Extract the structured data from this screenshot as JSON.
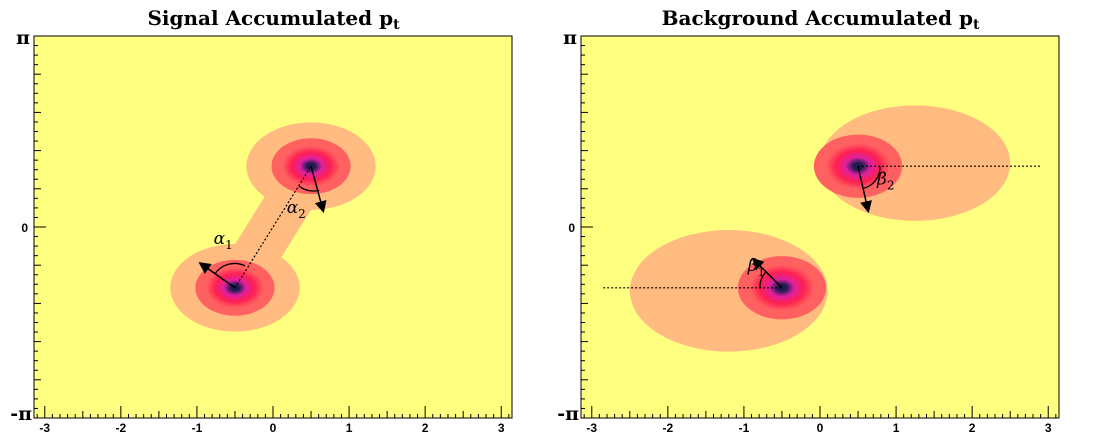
{
  "chart_data": [
    {
      "type": "heatmap",
      "title": "Signal Accumulated p",
      "title_sub": "t",
      "x_ticks": [
        -3,
        -2,
        -1,
        0,
        1,
        2,
        3
      ],
      "y_tick_labels": {
        "top": "π",
        "mid": "0",
        "bottom": "-π"
      },
      "xlim": [
        -3.14159,
        3.14159
      ],
      "ylim": [
        -3.14159,
        3.14159
      ],
      "colormap": [
        "#ffff80",
        "#ffbb80",
        "#ff6060",
        "#ff2050",
        "#e020a0",
        "#1c1c50"
      ],
      "peaks": [
        {
          "x": -0.5,
          "y": -1.0
        },
        {
          "x": 0.5,
          "y": 1.0
        }
      ],
      "annotations": [
        {
          "id": "alpha1",
          "symbol": "α",
          "subscript": "1",
          "x": -0.78,
          "y": -0.28
        },
        {
          "id": "alpha2",
          "symbol": "α",
          "subscript": "2",
          "x": 0.18,
          "y": 0.23
        }
      ]
    },
    {
      "type": "heatmap",
      "title": "Background Accumulated p",
      "title_sub": "t",
      "x_ticks": [
        -3,
        -2,
        -1,
        0,
        1,
        2,
        3
      ],
      "y_tick_labels": {
        "top": "π",
        "mid": "0",
        "bottom": "-π"
      },
      "xlim": [
        -3.14159,
        3.14159
      ],
      "ylim": [
        -3.14159,
        3.14159
      ],
      "colormap": [
        "#ffff80",
        "#ffbb80",
        "#ff6060",
        "#ff2050",
        "#e020a0",
        "#1c1c50"
      ],
      "peaks": [
        {
          "x": -0.5,
          "y": -1.0
        },
        {
          "x": 0.5,
          "y": 1.0
        }
      ],
      "annotations": [
        {
          "id": "beta1",
          "symbol": "β",
          "subscript": "1",
          "x": -0.95,
          "y": -0.72
        },
        {
          "id": "beta2",
          "symbol": "β",
          "subscript": "2",
          "x": 0.75,
          "y": 0.7
        }
      ]
    }
  ]
}
